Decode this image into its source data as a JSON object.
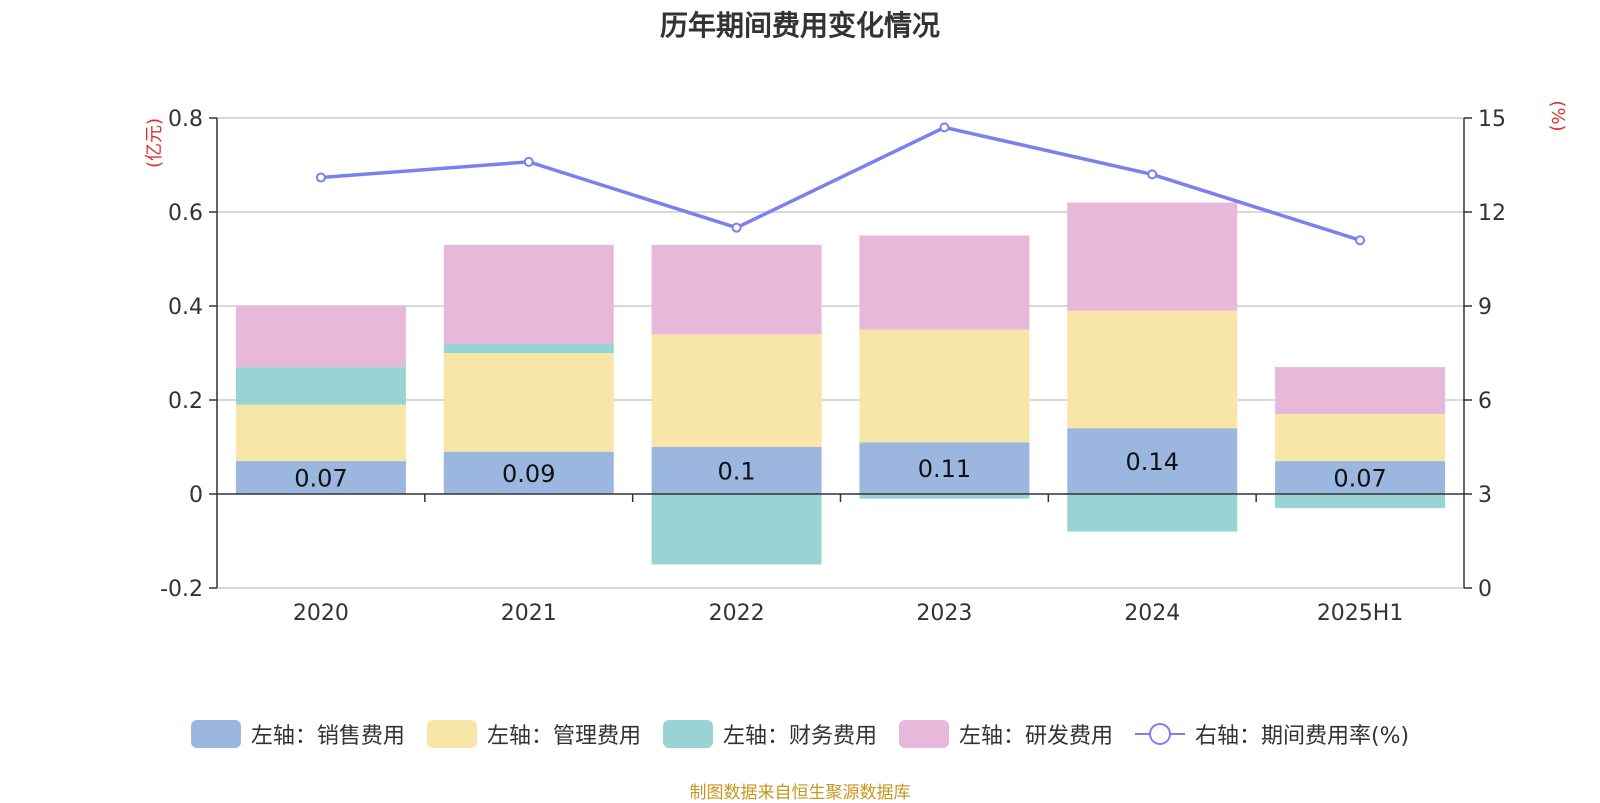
{
  "chart_data": {
    "type": "bar",
    "stacked": true,
    "title": "历年期间费用变化情况",
    "categories": [
      "2020",
      "2021",
      "2022",
      "2023",
      "2024",
      "2025H1"
    ],
    "y_left": {
      "unit": "(亿元)",
      "min": -0.2,
      "max": 0.8,
      "ticks": [
        "-0.2",
        "0",
        "0.2",
        "0.4",
        "0.6",
        "0.8"
      ]
    },
    "y_right": {
      "unit": "(%)",
      "min": 0,
      "max": 15,
      "ticks": [
        "0",
        "3",
        "6",
        "9",
        "12",
        "15"
      ]
    },
    "series": [
      {
        "name": "左轴：销售费用",
        "color": "#9bb7e0",
        "axis": "left",
        "type": "bar",
        "values": [
          0.07,
          0.09,
          0.1,
          0.11,
          0.14,
          0.07
        ],
        "labels": [
          "0.07",
          "0.09",
          "0.1",
          "0.11",
          "0.14",
          "0.07"
        ]
      },
      {
        "name": "左轴：管理费用",
        "color": "#f8e6a8",
        "axis": "left",
        "type": "bar",
        "values": [
          0.12,
          0.21,
          0.24,
          0.24,
          0.25,
          0.1
        ]
      },
      {
        "name": "左轴：财务费用",
        "color": "#98d4d4",
        "axis": "left",
        "type": "bar",
        "values": [
          0.08,
          0.02,
          -0.15,
          -0.01,
          -0.08,
          -0.03
        ]
      },
      {
        "name": "左轴：研发费用",
        "color": "#e8b8da",
        "axis": "left",
        "type": "bar",
        "values": [
          0.13,
          0.21,
          0.19,
          0.2,
          0.23,
          0.1
        ]
      },
      {
        "name": "右轴：期间费用率(%)",
        "color": "#7b7fef",
        "axis": "right",
        "type": "line",
        "values": [
          13.1,
          13.6,
          11.5,
          14.7,
          13.2,
          11.1
        ]
      }
    ],
    "grid": true,
    "legend_position": "bottom"
  },
  "footer": {
    "source": "制图数据来自恒生聚源数据库"
  }
}
